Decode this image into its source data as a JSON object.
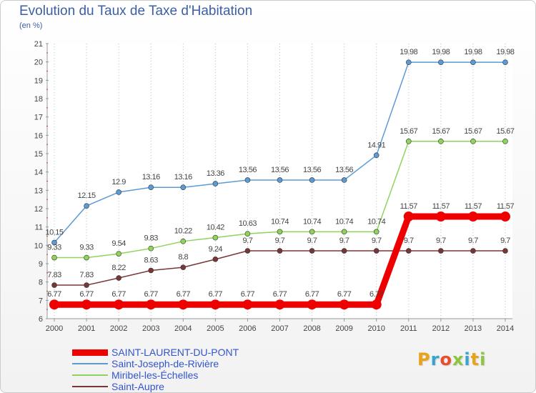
{
  "title": "Evolution du Taux de Taxe d'Habitation",
  "unit_label": "(en %)",
  "brand": {
    "text": "Proxiti",
    "letter_colors": [
      "#e8a317",
      "#3ba3d0",
      "#e84e2c",
      "#8cc63f",
      "#3ba3d0",
      "#e8a317",
      "#8cc63f"
    ]
  },
  "chart_data": {
    "type": "line",
    "title": "Evolution du Taux de Taxe d'Habitation",
    "ylabel": "(en %)",
    "xlabel": "",
    "x": [
      "2000",
      "2001",
      "2002",
      "2003",
      "2004",
      "2005",
      "2006",
      "2007",
      "2008",
      "2009",
      "2010",
      "2011",
      "2012",
      "2013",
      "2014"
    ],
    "ylim": [
      6,
      21
    ],
    "yticks": [
      "6",
      "7",
      "8",
      "9",
      "10",
      "11",
      "12",
      "13",
      "14",
      "15",
      "16",
      "17",
      "18",
      "19",
      "20",
      "21"
    ],
    "grid": "vertical dotted",
    "legend_position": "bottom-left",
    "series": [
      {
        "name": "SAINT-LAURENT-DU-PONT",
        "color": "#ee0000",
        "values": [
          6.77,
          6.77,
          6.77,
          6.77,
          6.77,
          6.77,
          6.77,
          6.77,
          6.77,
          6.77,
          6.77,
          11.57,
          11.57,
          11.57,
          11.57
        ],
        "labels": [
          "6.77",
          "6.77",
          "6.77",
          "6.77",
          "6.77",
          "6.77",
          "6.77",
          "6.77",
          "6.77",
          "6.77",
          "6.77",
          "11.57",
          "11.57",
          "11.57",
          "11.57"
        ]
      },
      {
        "name": "Saint-Joseph-de-Rivière",
        "color": "#5b9bd5",
        "values": [
          10.15,
          12.15,
          12.9,
          13.16,
          13.16,
          13.36,
          13.56,
          13.56,
          13.56,
          13.56,
          14.91,
          19.98,
          19.98,
          19.98,
          19.98
        ],
        "labels": [
          "10.15",
          "12.15",
          "12.9",
          "13.16",
          "13.16",
          "13.36",
          "13.56",
          "13.56",
          "13.56",
          "13.56",
          "14.91",
          "19.98",
          "19.98",
          "19.98",
          "19.98"
        ]
      },
      {
        "name": "Miribel-les-Échelles",
        "color": "#8fd45a",
        "values": [
          9.33,
          9.33,
          9.54,
          9.83,
          10.22,
          10.42,
          10.63,
          10.74,
          10.74,
          10.74,
          10.74,
          15.67,
          15.67,
          15.67,
          15.67
        ],
        "labels": [
          "9.33",
          "9.33",
          "9.54",
          "9.83",
          "10.22",
          "10.42",
          "10.63",
          "10.74",
          "10.74",
          "10.74",
          "10.74",
          "15.67",
          "15.67",
          "15.67",
          "15.67"
        ]
      },
      {
        "name": "Saint-Aupre",
        "color": "#7a3535",
        "values": [
          7.83,
          7.83,
          8.22,
          8.63,
          8.8,
          9.24,
          9.7,
          9.7,
          9.7,
          9.7,
          9.7,
          9.7,
          9.7,
          9.7,
          9.7
        ],
        "labels": [
          "7.83",
          "7.83",
          "8.22",
          "8.63",
          "8.8",
          "9.24",
          "9.7",
          "9.7",
          "9.7",
          "9.7",
          "9.7",
          "9.7",
          "9.7",
          "9.7",
          "9.7"
        ]
      }
    ]
  }
}
